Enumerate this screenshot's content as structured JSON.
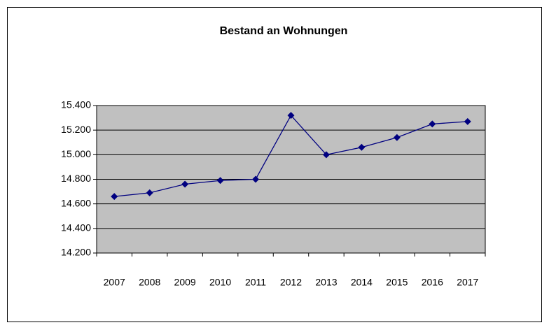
{
  "chart_data": {
    "type": "line",
    "title": "Bestand an Wohnungen",
    "categories": [
      "2007",
      "2008",
      "2009",
      "2010",
      "2011",
      "2012",
      "2013",
      "2014",
      "2015",
      "2016",
      "2017"
    ],
    "series": [
      {
        "name": "Bestand an Wohnungen",
        "color": "#000080",
        "values": [
          14660,
          14690,
          14760,
          14790,
          14800,
          15320,
          15000,
          15060,
          15140,
          15250,
          15270
        ]
      }
    ],
    "ylim": [
      14200,
      15400
    ],
    "yticks": [
      {
        "value": 14200,
        "label": "14.200"
      },
      {
        "value": 14400,
        "label": "14.400"
      },
      {
        "value": 14600,
        "label": "14.600"
      },
      {
        "value": 14800,
        "label": "14.800"
      },
      {
        "value": 15000,
        "label": "15.000"
      },
      {
        "value": 15200,
        "label": "15.200"
      },
      {
        "value": 15400,
        "label": "15.400"
      }
    ],
    "grid": true,
    "plot_background": "#c0c0c0"
  }
}
